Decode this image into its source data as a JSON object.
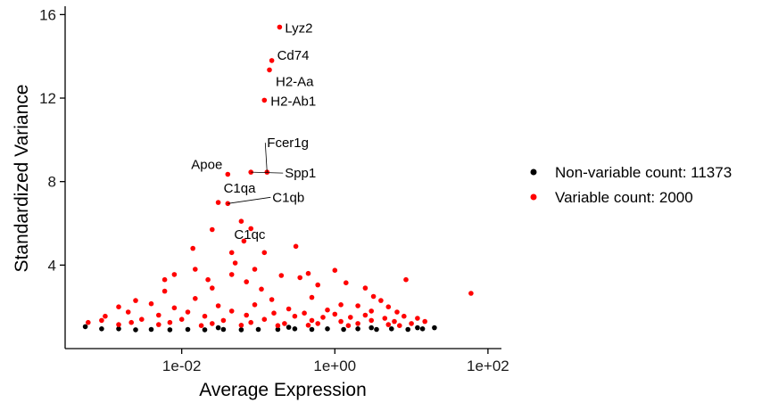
{
  "chart_data": {
    "type": "scatter",
    "xlabel": "Average Expression",
    "ylabel": "Standardized Variance",
    "x_scale": "log10",
    "xlim": [
      0.0003,
      150
    ],
    "ylim": [
      0,
      16.4
    ],
    "x_ticks": [
      0.01,
      1,
      100
    ],
    "x_tick_labels": [
      "1e-02",
      "1e+00",
      "1e+02"
    ],
    "y_ticks": [
      4,
      8,
      12,
      16
    ],
    "y_tick_labels": [
      "4",
      "8",
      "12",
      "16"
    ],
    "grid": false,
    "legend_position": "right",
    "series": [
      {
        "name": "Non-variable count: 11373",
        "color": "#000000",
        "points": [
          [
            0.00055,
            1.05
          ],
          [
            0.0009,
            0.95
          ],
          [
            0.0015,
            0.95
          ],
          [
            0.0025,
            0.9
          ],
          [
            0.004,
            0.92
          ],
          [
            0.007,
            0.9
          ],
          [
            0.012,
            0.92
          ],
          [
            0.02,
            0.9
          ],
          [
            0.035,
            0.92
          ],
          [
            0.06,
            0.9
          ],
          [
            0.1,
            0.92
          ],
          [
            0.18,
            0.92
          ],
          [
            0.3,
            0.95
          ],
          [
            0.5,
            0.92
          ],
          [
            0.8,
            0.95
          ],
          [
            1.3,
            0.92
          ],
          [
            2,
            0.95
          ],
          [
            3.5,
            0.92
          ],
          [
            5.5,
            0.95
          ],
          [
            9,
            0.92
          ],
          [
            14,
            0.95
          ],
          [
            20,
            1.0
          ],
          [
            0.03,
            1.0
          ],
          [
            0.25,
            1.02
          ],
          [
            3,
            1.0
          ],
          [
            12,
            1.0
          ]
        ]
      },
      {
        "name": "Variable count: 2000",
        "color": "#ff0000",
        "points": [
          [
            0.19,
            15.4
          ],
          [
            0.15,
            13.8
          ],
          [
            0.14,
            13.35
          ],
          [
            0.12,
            11.9
          ],
          [
            0.08,
            8.45
          ],
          [
            0.13,
            8.45
          ],
          [
            0.04,
            8.35
          ],
          [
            0.03,
            7.0
          ],
          [
            0.04,
            6.95
          ],
          [
            0.06,
            6.1
          ],
          [
            0.08,
            5.75
          ],
          [
            0.025,
            5.7
          ],
          [
            0.065,
            5.15
          ],
          [
            0.014,
            4.8
          ],
          [
            0.045,
            4.6
          ],
          [
            0.12,
            4.6
          ],
          [
            0.31,
            4.9
          ],
          [
            0.05,
            4.1
          ],
          [
            0.045,
            3.55
          ],
          [
            0.015,
            3.8
          ],
          [
            0.09,
            3.8
          ],
          [
            1.0,
            3.75
          ],
          [
            0.008,
            3.55
          ],
          [
            0.2,
            3.5
          ],
          [
            0.45,
            3.6
          ],
          [
            0.35,
            3.4
          ],
          [
            0.006,
            3.3
          ],
          [
            0.022,
            3.3
          ],
          [
            0.07,
            3.2
          ],
          [
            0.6,
            3.05
          ],
          [
            1.4,
            3.15
          ],
          [
            8.5,
            3.3
          ],
          [
            2.5,
            2.9
          ],
          [
            0.11,
            2.85
          ],
          [
            0.025,
            2.9
          ],
          [
            0.006,
            2.75
          ],
          [
            3.2,
            2.5
          ],
          [
            60,
            2.65
          ],
          [
            0.0025,
            2.3
          ],
          [
            0.015,
            2.4
          ],
          [
            0.15,
            2.35
          ],
          [
            0.5,
            2.45
          ],
          [
            4,
            2.3
          ],
          [
            0.004,
            2.15
          ],
          [
            0.03,
            2.05
          ],
          [
            0.09,
            2.1
          ],
          [
            1.2,
            2.1
          ],
          [
            2.0,
            2.05
          ],
          [
            5.0,
            2.0
          ],
          [
            0.0015,
            2.0
          ],
          [
            0.008,
            1.95
          ],
          [
            0.25,
            1.9
          ],
          [
            0.8,
            1.85
          ],
          [
            3.0,
            1.8
          ],
          [
            6.5,
            1.75
          ],
          [
            0.002,
            1.75
          ],
          [
            0.012,
            1.75
          ],
          [
            0.045,
            1.8
          ],
          [
            0.16,
            1.7
          ],
          [
            0.4,
            1.7
          ],
          [
            1.0,
            1.65
          ],
          [
            2.5,
            1.6
          ],
          [
            8,
            1.55
          ],
          [
            0.001,
            1.55
          ],
          [
            0.005,
            1.6
          ],
          [
            0.02,
            1.55
          ],
          [
            0.07,
            1.6
          ],
          [
            0.3,
            1.55
          ],
          [
            0.7,
            1.5
          ],
          [
            1.6,
            1.5
          ],
          [
            4.5,
            1.45
          ],
          [
            12,
            1.45
          ],
          [
            0.0009,
            1.35
          ],
          [
            0.003,
            1.4
          ],
          [
            0.01,
            1.4
          ],
          [
            0.035,
            1.35
          ],
          [
            0.12,
            1.4
          ],
          [
            0.5,
            1.35
          ],
          [
            1.2,
            1.3
          ],
          [
            3,
            1.35
          ],
          [
            6,
            1.3
          ],
          [
            15,
            1.3
          ],
          [
            0.0006,
            1.25
          ],
          [
            0.0022,
            1.25
          ],
          [
            0.007,
            1.25
          ],
          [
            0.025,
            1.2
          ],
          [
            0.08,
            1.25
          ],
          [
            0.22,
            1.2
          ],
          [
            0.6,
            1.2
          ],
          [
            2,
            1.2
          ],
          [
            5,
            1.15
          ],
          [
            10,
            1.2
          ],
          [
            0.0015,
            1.15
          ],
          [
            0.005,
            1.15
          ],
          [
            0.018,
            1.1
          ],
          [
            0.06,
            1.12
          ],
          [
            0.18,
            1.1
          ],
          [
            0.45,
            1.12
          ],
          [
            1.5,
            1.1
          ],
          [
            7,
            1.1
          ]
        ]
      }
    ],
    "annotations": [
      {
        "text": "Lyz2",
        "x": 0.19,
        "y": 15.4
      },
      {
        "text": "Cd74",
        "x": 0.15,
        "y": 13.8
      },
      {
        "text": "H2-Aa",
        "x": 0.14,
        "y": 13.35
      },
      {
        "text": "H2-Ab1",
        "x": 0.12,
        "y": 11.9
      },
      {
        "text": "Fcer1g",
        "x": 0.13,
        "y": 8.45
      },
      {
        "text": "Apoe",
        "x": 0.04,
        "y": 8.35
      },
      {
        "text": "Spp1",
        "x": 0.08,
        "y": 8.45
      },
      {
        "text": "C1qa",
        "x": 0.03,
        "y": 7.0
      },
      {
        "text": "C1qb",
        "x": 0.04,
        "y": 6.95
      },
      {
        "text": "C1qc",
        "x": 0.06,
        "y": 6.1
      }
    ]
  }
}
